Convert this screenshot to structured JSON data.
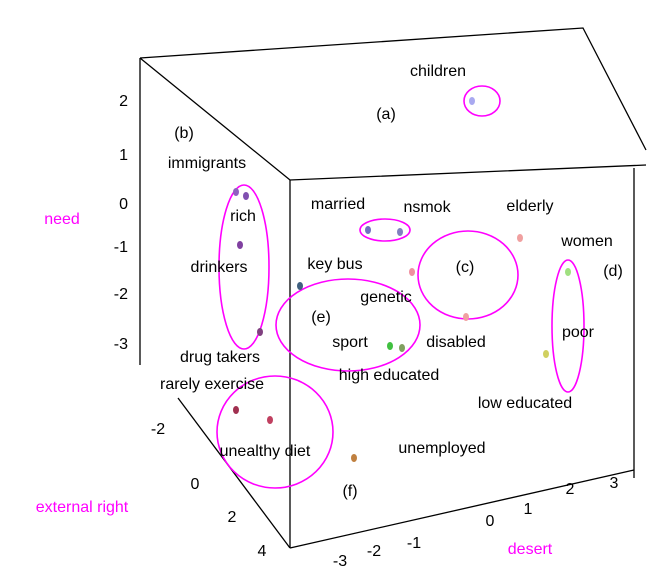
{
  "axes": {
    "need": {
      "label": "need",
      "ticks": [
        "2",
        "1",
        "0",
        "-1",
        "-2",
        "-3"
      ]
    },
    "external_right": {
      "label": "external right",
      "ticks": [
        "-2",
        "0",
        "2",
        "4"
      ]
    },
    "desert": {
      "label": "desert",
      "ticks": [
        "-3",
        "-2",
        "-1",
        "0",
        "1",
        "2",
        "3"
      ]
    }
  },
  "items": [
    "children",
    "immigrants",
    "married",
    "nsmok",
    "elderly",
    "women",
    "rich",
    "drinkers",
    "key bus",
    "genetic",
    "disabled",
    "poor",
    "sport",
    "drug takers",
    "high educated",
    "rarely exercise",
    "low educated",
    "unealthy diet",
    "unemployed"
  ],
  "groups": [
    "(a)",
    "(b)",
    "(c)",
    "(d)",
    "(e)",
    "(f)"
  ]
}
